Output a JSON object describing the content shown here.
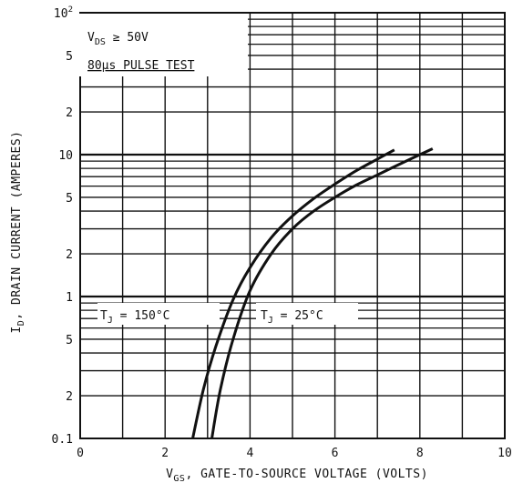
{
  "chart_data": {
    "type": "line",
    "xlabel_main": "V",
    "xlabel_sub": "GS",
    "xlabel_rest": ", GATE-TO-SOURCE VOLTAGE  (VOLTS)",
    "ylabel_main": "I",
    "ylabel_sub": "D",
    "ylabel_rest": ", DRAIN CURRENT  (AMPERES)",
    "xlim": [
      0,
      10
    ],
    "ylim": [
      0.1,
      100
    ],
    "yscale": "log",
    "x_ticks": [
      "0",
      "2",
      "4",
      "6",
      "8",
      "10"
    ],
    "y_ticks": [
      {
        "value": 100,
        "label": "10",
        "sup": "2"
      },
      {
        "value": 50,
        "label": "5",
        "sup": ""
      },
      {
        "value": 20,
        "label": "2",
        "sup": ""
      },
      {
        "value": 10,
        "label": "10",
        "sup": ""
      },
      {
        "value": 5,
        "label": "5",
        "sup": ""
      },
      {
        "value": 2,
        "label": "2",
        "sup": ""
      },
      {
        "value": 1,
        "label": "1",
        "sup": ""
      },
      {
        "value": 0.5,
        "label": "5",
        "sup": ""
      },
      {
        "value": 0.2,
        "label": "2",
        "sup": ""
      },
      {
        "value": 0.1,
        "label": "0.1",
        "sup": ""
      }
    ],
    "grid": true,
    "conditions": {
      "line1_main": "V",
      "line1_sub": "DS",
      "line1_rest": " ≥ 50V",
      "line2": "80μs PULSE TEST"
    },
    "series": [
      {
        "name": "T_J = 150°C",
        "label_main": "T",
        "label_sub": "J",
        "label_rest": " = 150°C",
        "x": [
          2.65,
          2.9,
          3.2,
          3.6,
          4.0,
          4.5,
          5.0,
          5.5,
          6.0,
          6.5,
          7.0,
          7.4
        ],
        "y": [
          0.1,
          0.22,
          0.45,
          0.95,
          1.6,
          2.6,
          3.7,
          4.9,
          6.2,
          7.7,
          9.3,
          10.8
        ]
      },
      {
        "name": "T_J = 25°C",
        "label_main": "T",
        "label_sub": "J",
        "label_rest": " = 25°C",
        "x": [
          3.1,
          3.3,
          3.6,
          4.0,
          4.5,
          5.0,
          5.5,
          6.0,
          6.5,
          7.0,
          7.5,
          8.0,
          8.3
        ],
        "y": [
          0.1,
          0.22,
          0.5,
          1.1,
          2.0,
          3.0,
          4.0,
          5.0,
          6.1,
          7.2,
          8.5,
          10.0,
          11.0
        ]
      }
    ]
  }
}
